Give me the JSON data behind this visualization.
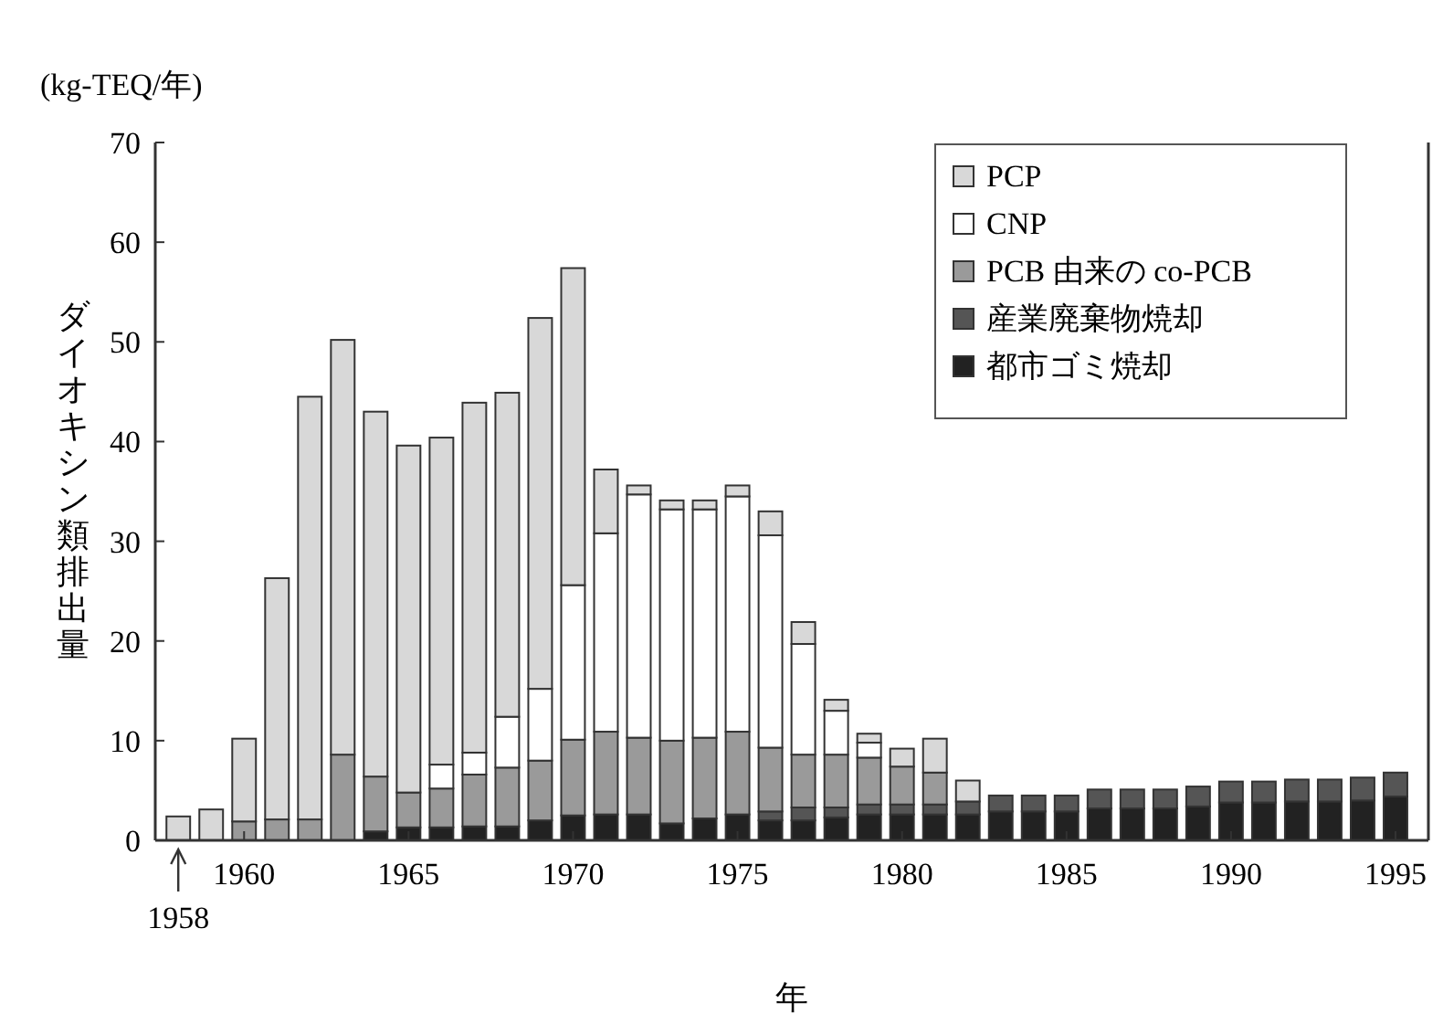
{
  "chart_data": {
    "type": "bar",
    "stacked": true,
    "ylabel": "ダイオキシン類排出量",
    "xlabel": "年",
    "annotations": [
      "(kg-TEQ/年)",
      {
        "text": "1958",
        "x": 1958,
        "y": 0
      }
    ],
    "x": [
      1958,
      1959,
      1960,
      1961,
      1962,
      1963,
      1964,
      1965,
      1966,
      1967,
      1968,
      1969,
      1970,
      1971,
      1972,
      1973,
      1974,
      1975,
      1976,
      1977,
      1978,
      1979,
      1980,
      1981,
      1982,
      1983,
      1984,
      1985,
      1986,
      1987,
      1988,
      1989,
      1990,
      1991,
      1992,
      1993,
      1994,
      1995
    ],
    "xlim": [
      1957.3,
      1996
    ],
    "xticks": [
      1960,
      1965,
      1970,
      1975,
      1980,
      1985,
      1990,
      1995
    ],
    "ylim": [
      0,
      70
    ],
    "yticks": [
      0,
      10,
      20,
      30,
      40,
      50,
      60,
      70
    ],
    "grid": false,
    "legend": "top right",
    "series": [
      {
        "name": "都市ゴミ焼却",
        "color": "#222222",
        "values": [
          null,
          null,
          null,
          null,
          null,
          null,
          0.9,
          1.3,
          1.3,
          1.4,
          1.4,
          2.0,
          2.5,
          2.6,
          2.6,
          1.7,
          2.2,
          2.6,
          2.0,
          2.0,
          2.3,
          2.6,
          2.6,
          2.6,
          2.6,
          2.9,
          2.9,
          2.9,
          3.2,
          3.2,
          3.2,
          3.4,
          3.8,
          3.8,
          3.9,
          3.9,
          4.0,
          4.4
        ]
      },
      {
        "name": "産業廃棄物焼却",
        "color": "#555555",
        "values": [
          null,
          null,
          null,
          null,
          null,
          null,
          null,
          null,
          null,
          null,
          null,
          null,
          null,
          null,
          null,
          null,
          null,
          null,
          0.9,
          1.3,
          1.0,
          1.0,
          1.0,
          1.0,
          1.3,
          1.6,
          1.6,
          1.6,
          1.9,
          1.9,
          1.9,
          2.0,
          2.1,
          2.1,
          2.2,
          2.2,
          2.3,
          2.4
        ]
      },
      {
        "name": "PCB 由来の co-PCB",
        "color": "#9a9a9a",
        "values": [
          null,
          null,
          1.9,
          2.1,
          2.1,
          8.6,
          5.5,
          3.5,
          3.9,
          5.2,
          5.9,
          6.0,
          7.6,
          8.3,
          7.7,
          8.3,
          8.1,
          8.3,
          6.4,
          5.3,
          5.3,
          4.7,
          3.8,
          3.2,
          null,
          null,
          null,
          null,
          null,
          null,
          null,
          null,
          null,
          null,
          null,
          null,
          null,
          null
        ]
      },
      {
        "name": "CNP",
        "color": "#ffffff",
        "values": [
          null,
          null,
          null,
          null,
          null,
          null,
          null,
          null,
          2.4,
          2.2,
          5.1,
          7.2,
          15.5,
          19.9,
          24.4,
          23.2,
          22.9,
          23.6,
          21.3,
          11.1,
          4.4,
          1.5,
          null,
          null,
          null,
          null,
          null,
          null,
          null,
          null,
          null,
          null,
          null,
          null,
          null,
          null,
          null,
          null
        ]
      },
      {
        "name": "PCP",
        "color": "#d8d8d8",
        "values": [
          2.4,
          3.1,
          8.3,
          24.2,
          42.4,
          41.6,
          36.6,
          34.8,
          32.8,
          35.1,
          32.5,
          37.2,
          31.8,
          6.4,
          0.9,
          0.9,
          0.9,
          1.1,
          2.4,
          2.2,
          1.1,
          0.9,
          1.8,
          3.4,
          2.1,
          null,
          null,
          null,
          null,
          null,
          null,
          null,
          null,
          null,
          null,
          null,
          null,
          null
        ]
      }
    ]
  }
}
